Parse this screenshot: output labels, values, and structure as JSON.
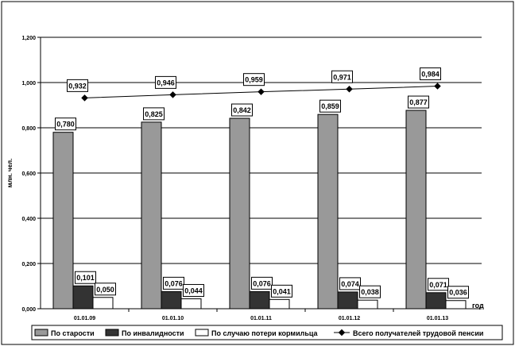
{
  "chart_data": {
    "type": "bar",
    "ylabel": "млн. чел.",
    "xlabel": "год",
    "ylim": [
      0,
      1.2
    ],
    "yticks": [
      "0,000",
      "0,200",
      "0,400",
      "0,600",
      "0,800",
      "1,000",
      "1,200"
    ],
    "grid": true,
    "legend_position": "bottom",
    "categories": [
      "01.01.09",
      "01.01.10",
      "01.01.11",
      "01.01.12",
      "01.01.13"
    ],
    "series": [
      {
        "name": "По старости",
        "kind": "bar",
        "color": "#999999",
        "values": [
          0.78,
          0.825,
          0.842,
          0.859,
          0.877
        ],
        "labels": [
          "0,780",
          "0,825",
          "0,842",
          "0,859",
          "0,877"
        ]
      },
      {
        "name": "По инвалидности",
        "kind": "bar",
        "color": "#333333",
        "values": [
          0.101,
          0.076,
          0.076,
          0.074,
          0.071
        ],
        "labels": [
          "0,101",
          "0,076",
          "0,076",
          "0,074",
          "0,071"
        ]
      },
      {
        "name": "По случаю потери кормильца",
        "kind": "bar",
        "color": "#ffffff",
        "values": [
          0.05,
          0.044,
          0.041,
          0.038,
          0.036
        ],
        "labels": [
          "0,050",
          "0,044",
          "0,041",
          "0,038",
          "0,036"
        ]
      },
      {
        "name": "Всего получателей трудовой пенсии",
        "kind": "line",
        "color": "#000000",
        "values": [
          0.932,
          0.946,
          0.959,
          0.971,
          0.984
        ],
        "labels": [
          "0,932",
          "0,946",
          "0,959",
          "0,971",
          "0,984"
        ]
      }
    ]
  }
}
